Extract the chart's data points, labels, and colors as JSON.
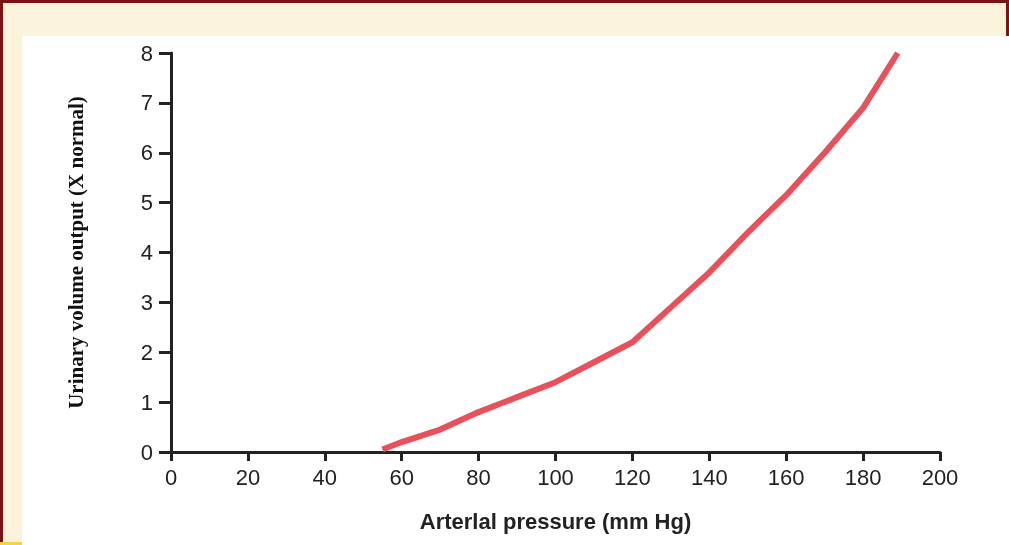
{
  "chart_data": {
    "type": "line",
    "xlabel": "Arterlal pressure (mm Hg)",
    "ylabel": "Urinary volume output (X normal)",
    "x": [
      55,
      60,
      70,
      80,
      90,
      100,
      110,
      120,
      130,
      140,
      150,
      160,
      170,
      180,
      189
    ],
    "series": [
      {
        "color": "#e8505b",
        "values": [
          0.05,
          0.2,
          0.45,
          0.8,
          1.1,
          1.4,
          1.8,
          2.2,
          2.9,
          3.6,
          4.4,
          5.15,
          6.0,
          6.9,
          8
        ]
      }
    ],
    "xlim": [
      0,
      200
    ],
    "xticks": [
      0,
      20,
      40,
      60,
      80,
      100,
      120,
      140,
      160,
      180,
      200
    ],
    "ylim": [
      0,
      8
    ],
    "yticks": [
      0,
      1,
      2,
      3,
      4,
      5,
      6,
      7,
      8
    ],
    "grid": false,
    "marker": "none",
    "line_style": "solid"
  }
}
